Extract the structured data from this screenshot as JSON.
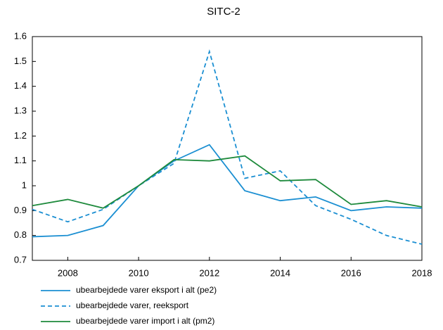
{
  "chart_data": {
    "type": "line",
    "title": "SITC-2",
    "x": [
      2007,
      2008,
      2009,
      2010,
      2011,
      2012,
      2013,
      2014,
      2015,
      2016,
      2017,
      2018
    ],
    "series": [
      {
        "name": "ubearbejdede varer eksport i alt (pe2)",
        "color": "#1b8fd2",
        "linestyle": "solid",
        "values": [
          0.795,
          0.8,
          0.84,
          1.0,
          1.1,
          1.165,
          0.98,
          0.94,
          0.955,
          0.9,
          0.915,
          0.91
        ]
      },
      {
        "name": "ubearbejdede varer, reeksport",
        "color": "#1b8fd2",
        "linestyle": "dashed",
        "values": [
          0.905,
          0.855,
          0.905,
          1.0,
          1.09,
          1.54,
          1.03,
          1.06,
          0.92,
          0.865,
          0.8,
          0.765
        ]
      },
      {
        "name": "ubearbejdede varer import i alt (pm2)",
        "color": "#1e8a3c",
        "linestyle": "solid",
        "values": [
          0.92,
          0.945,
          0.91,
          1.0,
          1.105,
          1.1,
          1.12,
          1.02,
          1.025,
          0.925,
          0.94,
          0.915
        ]
      }
    ],
    "xlim": [
      2007,
      2018
    ],
    "xticks": [
      2008,
      2010,
      2012,
      2014,
      2016,
      2018
    ],
    "ylim": [
      0.7,
      1.6
    ],
    "yticks": [
      0.7,
      0.8,
      0.9,
      1,
      1.1,
      1.2,
      1.3,
      1.4,
      1.5,
      1.6
    ],
    "grid": false,
    "legend": "bottom"
  }
}
